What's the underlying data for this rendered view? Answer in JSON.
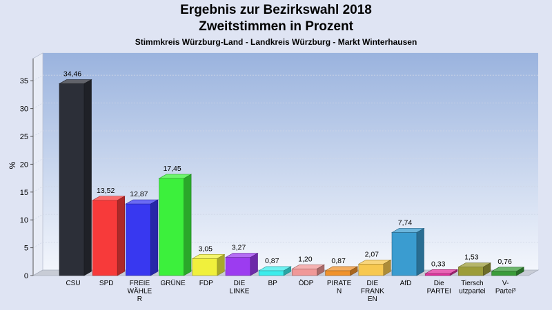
{
  "chart_data": {
    "type": "bar",
    "title": "Ergebnis zur Bezirkswahl 2018",
    "subtitle": "Zweitstimmen in Prozent",
    "subtitle2": "Stimmkreis Würzburg-Land - Landkreis Würzburg - Markt Winterhausen",
    "ylabel": "%",
    "ylim": [
      0,
      39
    ],
    "yticks": [
      0,
      5,
      10,
      15,
      20,
      25,
      30,
      35
    ],
    "grid": true,
    "categories": [
      [
        "CSU"
      ],
      [
        "SPD"
      ],
      [
        "FREIE",
        "WÄHLE",
        "R"
      ],
      [
        "GRÜNE"
      ],
      [
        "FDP"
      ],
      [
        "DIE",
        "LINKE"
      ],
      [
        "BP"
      ],
      [
        "ÖDP"
      ],
      [
        "PIRATE",
        "N"
      ],
      [
        "DIE",
        "FRANK",
        "EN"
      ],
      [
        "AfD"
      ],
      [
        "Die",
        "PARTEI"
      ],
      [
        "Tiersch",
        "utzpartei"
      ],
      [
        "V-",
        "Partei³"
      ]
    ],
    "values": [
      34.46,
      13.52,
      12.87,
      17.45,
      3.05,
      3.27,
      0.87,
      1.2,
      0.87,
      2.07,
      7.74,
      0.33,
      1.53,
      0.76
    ],
    "value_labels": [
      "34,46",
      "13,52",
      "12,87",
      "17,45",
      "3,05",
      "3,27",
      "0,87",
      "1,20",
      "0,87",
      "2,07",
      "7,74",
      "0,33",
      "1,53",
      "0,76"
    ],
    "colors": [
      "#2c2f38",
      "#f73a3a",
      "#3838f0",
      "#3cf03c",
      "#f0f03c",
      "#9c3cf0",
      "#3cecec",
      "#f09898",
      "#f0922c",
      "#f7c850",
      "#3a9cd0",
      "#e0309c",
      "#9c9c3a",
      "#3a9c3a"
    ]
  }
}
